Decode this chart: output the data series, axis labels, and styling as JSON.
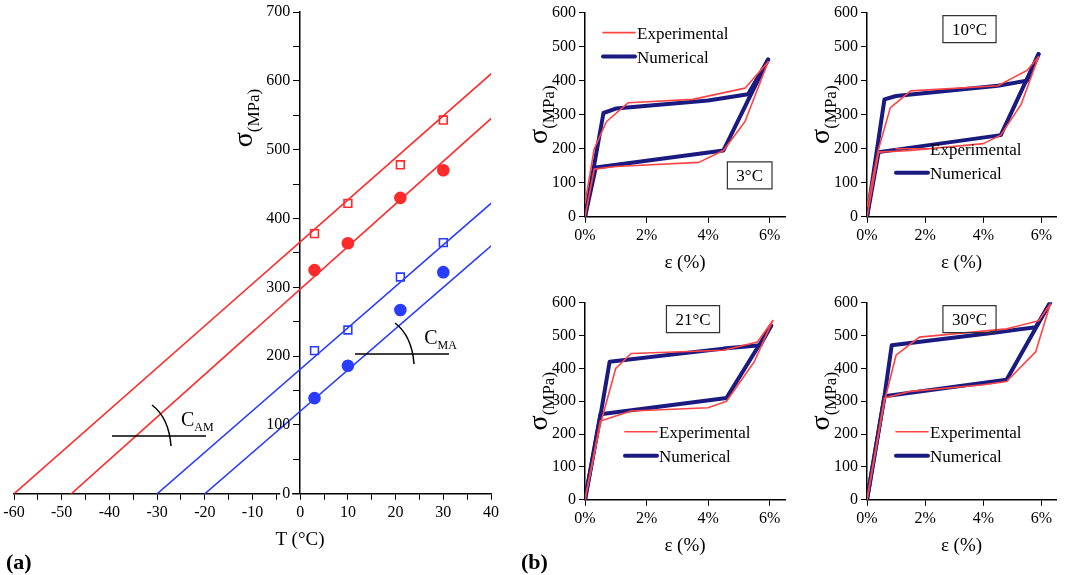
{
  "chart_data": [
    {
      "type": "scatter",
      "xlabel": "T (°C)",
      "ylabel": "σ$_{(MPa)}$",
      "xlim": [
        -60,
        40
      ],
      "ylim": [
        0,
        700
      ],
      "xticks": [
        -60,
        {
          "value": -55,
          "label": null
        },
        -50,
        {
          "value": -45,
          "label": null
        },
        -40,
        {
          "value": -35,
          "label": null
        },
        -30,
        {
          "value": -25,
          "label": null
        },
        -20,
        {
          "value": -15,
          "label": null
        },
        -10,
        {
          "value": -5,
          "label": null
        },
        0,
        {
          "value": 5,
          "label": null
        },
        10,
        {
          "value": 15,
          "label": null
        },
        20,
        {
          "value": 25,
          "label": null
        },
        30,
        {
          "value": 35,
          "label": null
        },
        40
      ],
      "yticks": [
        0,
        {
          "value": 50,
          "label": null
        },
        100,
        {
          "value": 150,
          "label": null
        },
        200,
        {
          "value": 250,
          "label": null
        },
        300,
        {
          "value": 350,
          "label": null
        },
        400,
        {
          "value": 450,
          "label": null
        },
        500,
        {
          "value": 550,
          "label": null
        },
        600,
        {
          "value": 650,
          "label": null
        },
        700
      ],
      "legend": false,
      "annotations": [
        "C$_{AM}$",
        "C$_{MA}$",
        "(a)"
      ],
      "series": [
        {
          "type": "line",
          "marker": "none",
          "color": "#ff2a2a",
          "x": [
            -60,
            40
          ],
          "values": [
            0,
            610
          ]
        },
        {
          "type": "line",
          "marker": "none",
          "color": "#ff2a2a",
          "x": [
            -48,
            40
          ],
          "values": [
            0,
            545
          ]
        },
        {
          "type": "line",
          "marker": "none",
          "color": "#2a3cff",
          "x": [
            -30,
            40
          ],
          "values": [
            0,
            422
          ]
        },
        {
          "type": "line",
          "marker": "none",
          "color": "#2a3cff",
          "x": [
            -20,
            40
          ],
          "values": [
            0,
            360
          ]
        },
        {
          "type": "scatter",
          "marker": "square",
          "color": "#ff2a2a",
          "x": [
            3,
            10,
            21,
            30
          ],
          "values": [
            378,
            422,
            478,
            543
          ]
        },
        {
          "type": "scatter",
          "marker": "circle",
          "color": "#ff2a2a",
          "x": [
            3,
            10,
            21,
            30
          ],
          "values": [
            325,
            364,
            430,
            470
          ]
        },
        {
          "type": "scatter",
          "marker": "square",
          "color": "#2a3cff",
          "x": [
            3,
            10,
            21,
            30
          ],
          "values": [
            208,
            238,
            315,
            365
          ]
        },
        {
          "type": "scatter",
          "marker": "circle",
          "color": "#2a3cff",
          "x": [
            3,
            10,
            21,
            30
          ],
          "values": [
            139,
            186,
            267,
            322
          ]
        }
      ]
    },
    {
      "type": "line",
      "xlabel": "ε (%)",
      "ylabel": "σ$_{(MPa)}$",
      "xlim": [
        0,
        6.5
      ],
      "ylim": [
        0,
        600
      ],
      "xticks": [
        {
          "value": 0,
          "label": "0%"
        },
        {
          "value": 2,
          "label": "2%"
        },
        {
          "value": 4,
          "label": "4%"
        },
        {
          "value": 6,
          "label": "6%"
        }
      ],
      "yticks": [
        0,
        100,
        200,
        300,
        400,
        500,
        600
      ],
      "legend": "top left",
      "marker": "none",
      "annotations": [
        "3°C"
      ],
      "series": [
        {
          "name": "Experimental",
          "color": "#ff4444",
          "x": [
            0,
            0.3,
            0.7,
            1.4,
            3.5,
            5.2,
            5.95
          ],
          "values": [
            40,
            200,
            280,
            335,
            345,
            378,
            455
          ]
        },
        {
          "color": "#ff4444",
          "x": [
            5.95,
            5.2,
            4.5,
            3.7,
            1.0,
            0.3,
            0
          ],
          "values": [
            455,
            280,
            195,
            160,
            148,
            140,
            0
          ]
        },
        {
          "name": "Numerical",
          "color": "#1a1a80",
          "x": [
            0,
            0.6,
            1.0,
            4.0,
            5.3,
            5.95
          ],
          "values": [
            0,
            305,
            318,
            342,
            360,
            462
          ]
        },
        {
          "color": "#1a1a80",
          "x": [
            5.95,
            4.5,
            0.35,
            0
          ],
          "values": [
            462,
            195,
            145,
            0
          ]
        }
      ]
    },
    {
      "type": "line",
      "xlabel": "ε (%)",
      "ylabel": "σ$_{(MPa)}$",
      "xlim": [
        0,
        6.5
      ],
      "ylim": [
        0,
        600
      ],
      "xticks": [
        {
          "value": 0,
          "label": "0%"
        },
        {
          "value": 2,
          "label": "2%"
        },
        {
          "value": 4,
          "label": "4%"
        },
        {
          "value": 6,
          "label": "6%"
        }
      ],
      "yticks": [
        0,
        100,
        200,
        300,
        400,
        500,
        600
      ],
      "legend": "bottom right",
      "marker": "none",
      "annotations": [
        "10°C"
      ],
      "series": [
        {
          "name": "Experimental",
          "color": "#ff4444",
          "x": [
            0,
            0.4,
            0.8,
            1.5,
            4.5,
            5.5,
            5.9
          ],
          "values": [
            30,
            200,
            320,
            370,
            385,
            430,
            470
          ]
        },
        {
          "color": "#ff4444",
          "x": [
            5.9,
            5.3,
            4.6,
            4.0,
            1.5,
            0.4,
            0
          ],
          "values": [
            470,
            330,
            240,
            215,
            195,
            190,
            0
          ]
        },
        {
          "name": "Numerical",
          "color": "#1a1a80",
          "x": [
            0,
            0.6,
            1.0,
            4.5,
            5.5,
            5.9
          ],
          "values": [
            0,
            345,
            355,
            385,
            400,
            478
          ]
        },
        {
          "color": "#1a1a80",
          "x": [
            5.9,
            4.6,
            0.4,
            0
          ],
          "values": [
            478,
            240,
            190,
            0
          ]
        }
      ]
    },
    {
      "type": "line",
      "xlabel": "ε (%)",
      "ylabel": "σ$_{(MPa)}$",
      "xlim": [
        0,
        6.5
      ],
      "ylim": [
        0,
        600
      ],
      "xticks": [
        {
          "value": 0,
          "label": "0%"
        },
        {
          "value": 2,
          "label": "2%"
        },
        {
          "value": 4,
          "label": "4%"
        },
        {
          "value": 6,
          "label": "6%"
        }
      ],
      "yticks": [
        0,
        100,
        200,
        300,
        400,
        500,
        600
      ],
      "legend": "bottom right",
      "marker": "none",
      "annotations": [
        "21°C",
        "(b)"
      ],
      "series": [
        {
          "name": "Experimental",
          "color": "#ff4444",
          "x": [
            0,
            0.5,
            1.0,
            1.5,
            4.5,
            5.6,
            6.1
          ],
          "values": [
            0,
            230,
            400,
            445,
            455,
            480,
            545
          ]
        },
        {
          "color": "#ff4444",
          "x": [
            6.1,
            5.5,
            4.6,
            4.0,
            1.5,
            0.5,
            0
          ],
          "values": [
            545,
            420,
            300,
            280,
            270,
            240,
            0
          ]
        },
        {
          "name": "Numerical",
          "color": "#1a1a80",
          "x": [
            0,
            0.5,
            0.8,
            4.5,
            5.7,
            6.05
          ],
          "values": [
            0,
            255,
            420,
            460,
            470,
            530
          ]
        },
        {
          "color": "#1a1a80",
          "x": [
            6.05,
            4.6,
            0.5,
            0
          ],
          "values": [
            530,
            310,
            260,
            0
          ]
        }
      ]
    },
    {
      "type": "line",
      "xlabel": "ε (%)",
      "ylabel": "σ$_{(MPa)}$",
      "xlim": [
        0,
        6.5
      ],
      "ylim": [
        0,
        600
      ],
      "xticks": [
        {
          "value": 0,
          "label": "0%"
        },
        {
          "value": 2,
          "label": "2%"
        },
        {
          "value": 4,
          "label": "4%"
        },
        {
          "value": 6,
          "label": "6%"
        }
      ],
      "yticks": [
        0,
        100,
        200,
        300,
        400,
        500,
        600
      ],
      "legend": "bottom right",
      "marker": "none",
      "annotations": [
        "30°C"
      ],
      "series": [
        {
          "name": "Experimental",
          "color": "#ff4444",
          "x": [
            0,
            0.6,
            1.0,
            1.8,
            4.8,
            5.9,
            6.3
          ],
          "values": [
            0,
            300,
            440,
            495,
            520,
            545,
            595
          ]
        },
        {
          "color": "#ff4444",
          "x": [
            6.3,
            5.8,
            4.8,
            4.0,
            1.5,
            0.6,
            0
          ],
          "values": [
            595,
            450,
            360,
            350,
            330,
            310,
            0
          ]
        },
        {
          "name": "Numerical",
          "color": "#1a1a80",
          "x": [
            0,
            0.6,
            0.85,
            4.5,
            5.8,
            6.3
          ],
          "values": [
            0,
            315,
            470,
            510,
            525,
            600
          ]
        },
        {
          "color": "#1a1a80",
          "x": [
            6.3,
            4.8,
            0.6,
            0
          ],
          "values": [
            600,
            365,
            315,
            0
          ]
        }
      ]
    }
  ]
}
